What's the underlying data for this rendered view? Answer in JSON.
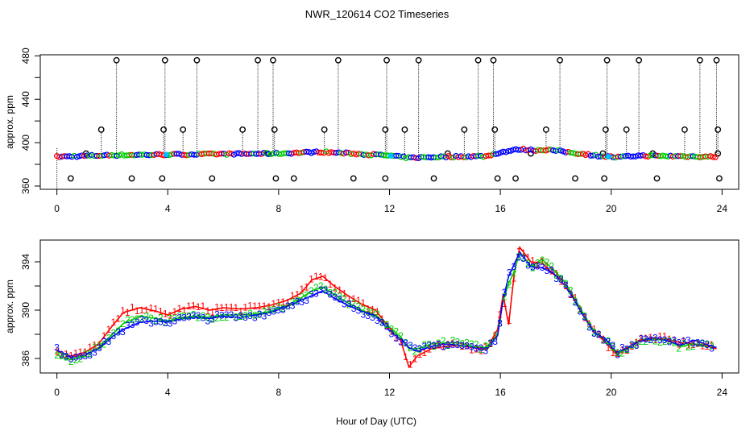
{
  "chart_data": [
    {
      "type": "scatter",
      "panel": "upper",
      "title": "NWR_120614  CO2 Timeseries",
      "ylabel": "approx. ppm",
      "xlabel": "",
      "xlim": [
        -0.6,
        24.6
      ],
      "ylim": [
        357,
        481
      ],
      "x_ticks": [
        0,
        4,
        8,
        12,
        16,
        20,
        24
      ],
      "y_ticks": [
        360,
        400,
        440,
        480
      ],
      "y_minor_ticks": [
        380,
        420,
        460
      ],
      "baseline_profile": [
        [
          0,
          387
        ],
        [
          2,
          388.5
        ],
        [
          4,
          389
        ],
        [
          6,
          389.5
        ],
        [
          8,
          390
        ],
        [
          9.5,
          391.5
        ],
        [
          11,
          389.5
        ],
        [
          12,
          388
        ],
        [
          12.7,
          386
        ],
        [
          14,
          387
        ],
        [
          15.5,
          387.5
        ],
        [
          16,
          391
        ],
        [
          16.7,
          394
        ],
        [
          17.2,
          393
        ],
        [
          17.7,
          393.5
        ],
        [
          18.5,
          391
        ],
        [
          19.5,
          388
        ],
        [
          20.2,
          386.5
        ],
        [
          21,
          388
        ],
        [
          23.8,
          387
        ]
      ],
      "high_flags": {
        "times": [
          2.15,
          3.9,
          5.05,
          7.25,
          7.8,
          10.15,
          11.9,
          13.05,
          15.2,
          15.75,
          18.15,
          19.85,
          21.0,
          23.2,
          23.8
        ],
        "value": 476
      },
      "mid_flags": {
        "times": [
          1.6,
          3.85,
          4.55,
          6.7,
          7.85,
          9.65,
          11.85,
          12.55,
          14.7,
          15.8,
          17.65,
          19.8,
          20.55,
          22.65,
          23.85
        ],
        "value": 412
      },
      "low_flags": {
        "times": [
          0.5,
          2.7,
          3.8,
          5.6,
          7.9,
          8.55,
          10.7,
          11.85,
          13.6,
          15.9,
          16.55,
          18.7,
          19.75,
          21.65,
          23.9
        ],
        "value": 367
      },
      "near_flags": {
        "times": [
          1.05,
          7.6,
          14.1,
          17.1,
          19.7,
          21.5,
          23.85
        ],
        "value": 390
      },
      "series": [
        {
          "name": "1",
          "color": "#ff0000"
        },
        {
          "name": "2",
          "color": "#00cd00"
        },
        {
          "name": "3",
          "color": "#0000ff"
        }
      ],
      "accent_color": "#00bfff"
    },
    {
      "type": "line",
      "panel": "lower",
      "title": "",
      "xlabel": "Hour of Day (UTC)",
      "ylabel": "approx. ppm",
      "xlim": [
        -0.6,
        24.6
      ],
      "ylim": [
        384.8,
        395.8
      ],
      "x_ticks": [
        0,
        4,
        8,
        12,
        16,
        20,
        24
      ],
      "y_ticks": [
        386,
        390,
        394
      ],
      "y_minor_ticks": [
        388,
        392
      ],
      "series": [
        {
          "name": "1",
          "label": "1",
          "color": "#ff0000",
          "points": [
            [
              0,
              386.6
            ],
            [
              0.5,
              386.2
            ],
            [
              1,
              386.5
            ],
            [
              1.5,
              387.2
            ],
            [
              2,
              388.7
            ],
            [
              2.4,
              389.8
            ],
            [
              3,
              390.2
            ],
            [
              3.6,
              389.9
            ],
            [
              4,
              389.6
            ],
            [
              4.5,
              390.1
            ],
            [
              5,
              390.3
            ],
            [
              5.5,
              390
            ],
            [
              6,
              390.2
            ],
            [
              6.6,
              390.1
            ],
            [
              7.2,
              390.2
            ],
            [
              7.7,
              390.4
            ],
            [
              8.3,
              390.8
            ],
            [
              8.8,
              391.4
            ],
            [
              9.2,
              392.5
            ],
            [
              9.6,
              392.8
            ],
            [
              10,
              392
            ],
            [
              10.5,
              391.2
            ],
            [
              11,
              390.5
            ],
            [
              11.5,
              390
            ],
            [
              12,
              388.5
            ],
            [
              12.4,
              387.5
            ],
            [
              12.7,
              385.3
            ],
            [
              13,
              386.2
            ],
            [
              13.5,
              386.8
            ],
            [
              14,
              387
            ],
            [
              14.5,
              387.1
            ],
            [
              15,
              386.9
            ],
            [
              15.5,
              386.8
            ],
            [
              15.9,
              388.4
            ],
            [
              16.1,
              391.3
            ],
            [
              16.3,
              388.8
            ],
            [
              16.5,
              393
            ],
            [
              16.7,
              395.2
            ],
            [
              17.1,
              394
            ],
            [
              17.5,
              393.9
            ],
            [
              17.9,
              393
            ],
            [
              18.3,
              392.4
            ],
            [
              18.6,
              391.2
            ],
            [
              19,
              389.6
            ],
            [
              19.4,
              388.2
            ],
            [
              19.8,
              387.3
            ],
            [
              20.2,
              386.3
            ],
            [
              20.6,
              386.9
            ],
            [
              21,
              387.5
            ],
            [
              21.5,
              387.7
            ],
            [
              22,
              387.6
            ],
            [
              22.5,
              387.3
            ],
            [
              23,
              387.2
            ],
            [
              23.5,
              387
            ],
            [
              23.8,
              386.8
            ]
          ]
        },
        {
          "name": "2",
          "label": "2",
          "color": "#00cd00",
          "points": [
            [
              0,
              386.3
            ],
            [
              0.5,
              385.9
            ],
            [
              1,
              386.2
            ],
            [
              1.5,
              386.9
            ],
            [
              2,
              388
            ],
            [
              2.4,
              388.9
            ],
            [
              3,
              389.5
            ],
            [
              3.6,
              389.3
            ],
            [
              4,
              389.1
            ],
            [
              4.5,
              389.4
            ],
            [
              5,
              389.5
            ],
            [
              5.5,
              389.4
            ],
            [
              6,
              389.6
            ],
            [
              6.6,
              389.6
            ],
            [
              7.2,
              389.7
            ],
            [
              7.7,
              389.9
            ],
            [
              8.3,
              390.4
            ],
            [
              8.8,
              391
            ],
            [
              9.2,
              391.6
            ],
            [
              9.6,
              391.9
            ],
            [
              10,
              391.3
            ],
            [
              10.5,
              390.6
            ],
            [
              11,
              390
            ],
            [
              11.5,
              389.6
            ],
            [
              12,
              388.6
            ],
            [
              12.4,
              387.8
            ],
            [
              12.7,
              386.8
            ],
            [
              13,
              386.8
            ],
            [
              13.5,
              387.2
            ],
            [
              14,
              387.3
            ],
            [
              14.5,
              387.3
            ],
            [
              15,
              387
            ],
            [
              15.5,
              386.9
            ],
            [
              15.9,
              388
            ],
            [
              16.1,
              390.8
            ],
            [
              16.3,
              392.2
            ],
            [
              16.5,
              393.2
            ],
            [
              16.7,
              394.8
            ],
            [
              17.1,
              393.6
            ],
            [
              17.5,
              394.2
            ],
            [
              17.9,
              393.4
            ],
            [
              18.3,
              392.4
            ],
            [
              18.6,
              391.3
            ],
            [
              19,
              389.7
            ],
            [
              19.4,
              388.2
            ],
            [
              19.8,
              387.5
            ],
            [
              20.2,
              386.4
            ],
            [
              20.6,
              386.8
            ],
            [
              21,
              387.4
            ],
            [
              21.5,
              387.6
            ],
            [
              22,
              387.5
            ],
            [
              22.5,
              387
            ],
            [
              23,
              387.2
            ],
            [
              23.5,
              387.1
            ],
            [
              23.8,
              386.9
            ]
          ]
        },
        {
          "name": "3",
          "label": "3",
          "color": "#0000ff",
          "points": [
            [
              0,
              386.7
            ],
            [
              0.5,
              386.1
            ],
            [
              1,
              386.3
            ],
            [
              1.5,
              386.8
            ],
            [
              2,
              387.8
            ],
            [
              2.4,
              388.4
            ],
            [
              3,
              389
            ],
            [
              3.6,
              389.1
            ],
            [
              4,
              389
            ],
            [
              4.5,
              389.3
            ],
            [
              5,
              389.4
            ],
            [
              5.5,
              389.3
            ],
            [
              6,
              389.5
            ],
            [
              6.6,
              389.4
            ],
            [
              7.2,
              389.6
            ],
            [
              7.7,
              389.8
            ],
            [
              8.3,
              390.3
            ],
            [
              8.8,
              390.8
            ],
            [
              9.2,
              391.2
            ],
            [
              9.6,
              391.6
            ],
            [
              10,
              391
            ],
            [
              10.5,
              390.4
            ],
            [
              11,
              389.9
            ],
            [
              11.5,
              389.5
            ],
            [
              12,
              388.3
            ],
            [
              12.4,
              387.6
            ],
            [
              12.7,
              386.9
            ],
            [
              13,
              386.6
            ],
            [
              13.5,
              387
            ],
            [
              14,
              387.2
            ],
            [
              14.5,
              387.1
            ],
            [
              15,
              386.9
            ],
            [
              15.5,
              386.7
            ],
            [
              15.9,
              387.9
            ],
            [
              16.1,
              390.9
            ],
            [
              16.3,
              392.8
            ],
            [
              16.5,
              393.8
            ],
            [
              16.7,
              394.8
            ],
            [
              17.1,
              393.6
            ],
            [
              17.5,
              393.5
            ],
            [
              17.9,
              393.1
            ],
            [
              18.3,
              392.1
            ],
            [
              18.6,
              391.1
            ],
            [
              19,
              389.5
            ],
            [
              19.4,
              388.1
            ],
            [
              19.8,
              387.6
            ],
            [
              20.2,
              386.5
            ],
            [
              20.6,
              386.9
            ],
            [
              21,
              387.4
            ],
            [
              21.5,
              387.7
            ],
            [
              22,
              387.5
            ],
            [
              22.5,
              387.1
            ],
            [
              23,
              387.5
            ],
            [
              23.5,
              387.1
            ],
            [
              23.8,
              386.9
            ]
          ]
        }
      ]
    }
  ]
}
